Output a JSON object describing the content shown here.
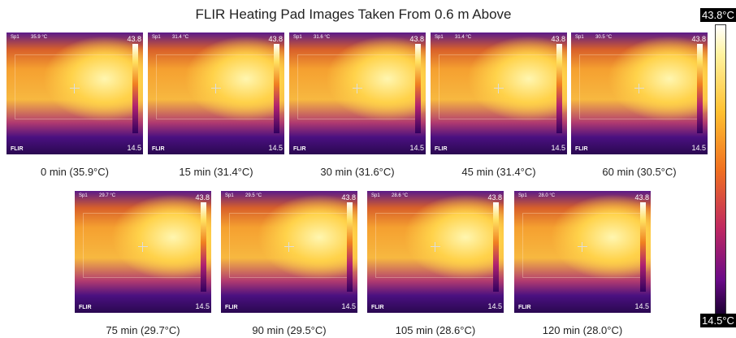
{
  "title": "FLIR Heating Pad Images Taken From 0.6 m Above",
  "images": [
    {
      "caption": "0 min (35.9°C)",
      "spot_label": "Sp1",
      "spot": "35.9 °C",
      "scale_max": "43.8",
      "scale_min": "14.5",
      "brand": "FLIR"
    },
    {
      "caption": "15 min (31.4°C)",
      "spot_label": "Sp1",
      "spot": "31.4 °C",
      "scale_max": "43.8",
      "scale_min": "14.5",
      "brand": "FLIR"
    },
    {
      "caption": "30 min (31.6°C)",
      "spot_label": "Sp1",
      "spot": "31.6 °C",
      "scale_max": "43.8",
      "scale_min": "14.5",
      "brand": "FLIR"
    },
    {
      "caption": "45 min (31.4°C)",
      "spot_label": "Sp1",
      "spot": "31.4 °C",
      "scale_max": "43.8",
      "scale_min": "14.5",
      "brand": "FLIR"
    },
    {
      "caption": "60 min (30.5°C)",
      "spot_label": "Sp1",
      "spot": "30.5 °C",
      "scale_max": "43.8",
      "scale_min": "14.5",
      "brand": "FLIR"
    },
    {
      "caption": "75 min (29.7°C)",
      "spot_label": "Sp1",
      "spot": "29.7 °C",
      "scale_max": "43.8",
      "scale_min": "14.5",
      "brand": "FLIR"
    },
    {
      "caption": "90 min (29.5°C)",
      "spot_label": "Sp1",
      "spot": "29.5 °C",
      "scale_max": "43.8",
      "scale_min": "14.5",
      "brand": "FLIR"
    },
    {
      "caption": "105 min (28.6°C)",
      "spot_label": "Sp1",
      "spot": "28.6 °C",
      "scale_max": "43.8",
      "scale_min": "14.5",
      "brand": "FLIR"
    },
    {
      "caption": "120 min (28.0°C)",
      "spot_label": "Sp1",
      "spot": "28.0 °C",
      "scale_max": "43.8",
      "scale_min": "14.5",
      "brand": "FLIR"
    }
  ],
  "colorbar": {
    "max": "43.8°C",
    "min": "14.5°C"
  }
}
